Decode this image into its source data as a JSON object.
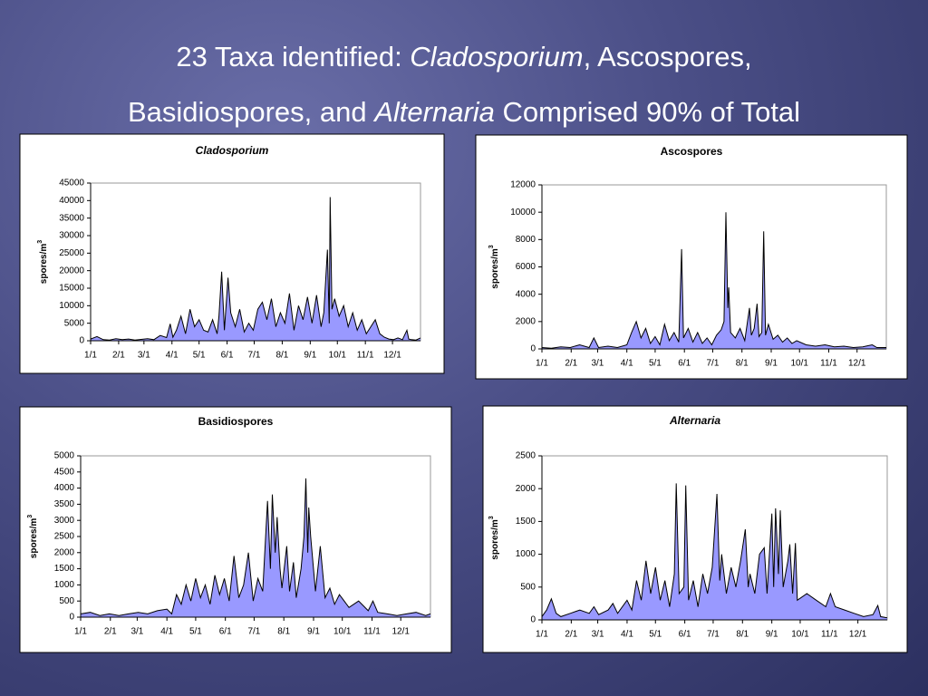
{
  "heading": [
    "23 Taxa identified: ",
    "Cladosporium",
    ", Ascospores,",
    "Basidiospores, and ",
    "Alternaria",
    " Comprised 90% of Total"
  ],
  "chart_data": [
    {
      "type": "area",
      "title": "Cladosporium",
      "title_italic": true,
      "ylabel": "spores/m",
      "ylabel_exponent": "3",
      "color": "#9999ff",
      "line_color": "#000000",
      "x": [
        0,
        7,
        14,
        21,
        28,
        35,
        42,
        49,
        56,
        63,
        70,
        77,
        84,
        88,
        91,
        95,
        100,
        105,
        110,
        115,
        120,
        125,
        130,
        135,
        140,
        142,
        145,
        148,
        152,
        155,
        160,
        165,
        170,
        175,
        180,
        185,
        190,
        195,
        200,
        205,
        210,
        215,
        220,
        225,
        230,
        235,
        240,
        245,
        250,
        255,
        258,
        262,
        264,
        265,
        267,
        270,
        275,
        280,
        285,
        290,
        295,
        300,
        305,
        310,
        315,
        320,
        325,
        330,
        335,
        340,
        345,
        350,
        352,
        355,
        360,
        365
      ],
      "values": [
        500,
        1200,
        300,
        200,
        600,
        300,
        500,
        200,
        400,
        600,
        300,
        1500,
        900,
        4800,
        1000,
        3000,
        7000,
        2000,
        9000,
        4000,
        6000,
        3000,
        2500,
        6000,
        2000,
        7000,
        19700,
        3000,
        18000,
        8000,
        4000,
        9000,
        2500,
        5000,
        3000,
        9000,
        11000,
        6000,
        12000,
        4000,
        8000,
        5000,
        13500,
        3000,
        10000,
        6000,
        12500,
        5000,
        13000,
        4000,
        8000,
        26000,
        5000,
        41000,
        9000,
        12000,
        7000,
        10000,
        4000,
        8000,
        3000,
        6000,
        2000,
        4000,
        6000,
        2000,
        1000,
        500,
        300,
        800,
        300,
        3000,
        500,
        300,
        200,
        800
      ],
      "xlim": [
        0,
        365
      ],
      "ylim": [
        0,
        45000
      ],
      "yticks": [
        0,
        5000,
        10000,
        15000,
        20000,
        25000,
        30000,
        35000,
        40000,
        45000
      ],
      "xticks": [
        {
          "value": 0,
          "label": "1/1"
        },
        {
          "value": 31,
          "label": "2/1"
        },
        {
          "value": 59,
          "label": "3/1"
        },
        {
          "value": 90,
          "label": "4/1"
        },
        {
          "value": 120,
          "label": "5/1"
        },
        {
          "value": 151,
          "label": "6/1"
        },
        {
          "value": 181,
          "label": "7/1"
        },
        {
          "value": 212,
          "label": "8/1"
        },
        {
          "value": 243,
          "label": "9/1"
        },
        {
          "value": 273,
          "label": "10/1"
        },
        {
          "value": 304,
          "label": "11/1"
        },
        {
          "value": 334,
          "label": "12/1"
        }
      ]
    },
    {
      "type": "area",
      "title": "Ascospores",
      "title_italic": false,
      "ylabel": "spores/m",
      "ylabel_exponent": "3",
      "color": "#9999ff",
      "line_color": "#000000",
      "x": [
        0,
        10,
        20,
        30,
        40,
        50,
        55,
        60,
        70,
        80,
        90,
        95,
        100,
        105,
        110,
        115,
        120,
        125,
        130,
        135,
        140,
        145,
        148,
        150,
        155,
        160,
        165,
        170,
        175,
        180,
        185,
        190,
        193,
        195,
        197,
        198,
        200,
        205,
        210,
        215,
        220,
        222,
        225,
        228,
        230,
        233,
        235,
        237,
        240,
        245,
        250,
        255,
        260,
        265,
        270,
        280,
        290,
        300,
        310,
        320,
        330,
        340,
        350,
        355,
        365
      ],
      "values": [
        100,
        50,
        150,
        100,
        300,
        100,
        800,
        100,
        200,
        100,
        300,
        1200,
        2000,
        800,
        1500,
        400,
        900,
        300,
        1800,
        600,
        1200,
        500,
        7300,
        800,
        1500,
        500,
        1200,
        400,
        800,
        300,
        1000,
        1400,
        2000,
        10000,
        3000,
        4500,
        1200,
        800,
        1500,
        600,
        3000,
        1000,
        1500,
        3300,
        900,
        1200,
        8600,
        1000,
        1800,
        700,
        1000,
        500,
        800,
        400,
        600,
        300,
        200,
        300,
        150,
        200,
        100,
        150,
        300,
        100,
        100
      ],
      "xlim": [
        0,
        365
      ],
      "ylim": [
        0,
        12000
      ],
      "yticks": [
        0,
        2000,
        4000,
        6000,
        8000,
        10000,
        12000
      ],
      "xticks": [
        {
          "value": 0,
          "label": "1/1"
        },
        {
          "value": 31,
          "label": "2/1"
        },
        {
          "value": 59,
          "label": "3/1"
        },
        {
          "value": 90,
          "label": "4/1"
        },
        {
          "value": 120,
          "label": "5/1"
        },
        {
          "value": 151,
          "label": "6/1"
        },
        {
          "value": 181,
          "label": "7/1"
        },
        {
          "value": 212,
          "label": "8/1"
        },
        {
          "value": 243,
          "label": "9/1"
        },
        {
          "value": 273,
          "label": "10/1"
        },
        {
          "value": 304,
          "label": "11/1"
        },
        {
          "value": 334,
          "label": "12/1"
        }
      ]
    },
    {
      "type": "area",
      "title": "Basidiospores",
      "title_italic": false,
      "ylabel": "spores/m",
      "ylabel_exponent": "3",
      "color": "#9999ff",
      "line_color": "#000000",
      "x": [
        0,
        10,
        20,
        30,
        40,
        50,
        60,
        70,
        80,
        90,
        95,
        100,
        105,
        110,
        115,
        120,
        125,
        130,
        135,
        140,
        145,
        150,
        155,
        160,
        165,
        170,
        175,
        180,
        185,
        190,
        195,
        198,
        200,
        203,
        205,
        208,
        210,
        215,
        218,
        222,
        225,
        230,
        233,
        235,
        237,
        238,
        240,
        245,
        250,
        255,
        260,
        265,
        270,
        280,
        290,
        300,
        305,
        310,
        320,
        330,
        340,
        350,
        360,
        365
      ],
      "values": [
        100,
        150,
        50,
        100,
        50,
        100,
        150,
        100,
        200,
        250,
        100,
        700,
        400,
        1000,
        500,
        1200,
        600,
        1000,
        400,
        1300,
        700,
        1200,
        500,
        1900,
        600,
        1000,
        2000,
        500,
        1200,
        800,
        3600,
        1500,
        3800,
        2000,
        3100,
        1500,
        900,
        2200,
        800,
        1700,
        600,
        1500,
        2500,
        4300,
        2000,
        3400,
        2500,
        800,
        2200,
        600,
        900,
        400,
        700,
        300,
        500,
        200,
        500,
        150,
        100,
        50,
        100,
        150,
        50,
        100
      ],
      "xlim": [
        0,
        365
      ],
      "ylim": [
        0,
        5000
      ],
      "yticks": [
        0,
        500,
        1000,
        1500,
        2000,
        2500,
        3000,
        3500,
        4000,
        4500,
        5000
      ],
      "xticks": [
        {
          "value": 0,
          "label": "1/1"
        },
        {
          "value": 31,
          "label": "2/1"
        },
        {
          "value": 59,
          "label": "3/1"
        },
        {
          "value": 90,
          "label": "4/1"
        },
        {
          "value": 120,
          "label": "5/1"
        },
        {
          "value": 151,
          "label": "6/1"
        },
        {
          "value": 181,
          "label": "7/1"
        },
        {
          "value": 212,
          "label": "8/1"
        },
        {
          "value": 243,
          "label": "9/1"
        },
        {
          "value": 273,
          "label": "10/1"
        },
        {
          "value": 304,
          "label": "11/1"
        },
        {
          "value": 334,
          "label": "12/1"
        }
      ]
    },
    {
      "type": "area",
      "title": "Alternaria",
      "title_italic": true,
      "ylabel": "spores/m",
      "ylabel_exponent": "3",
      "color": "#9999ff",
      "line_color": "#000000",
      "x": [
        0,
        5,
        10,
        15,
        20,
        30,
        40,
        50,
        55,
        60,
        70,
        75,
        80,
        90,
        95,
        100,
        105,
        110,
        115,
        120,
        125,
        130,
        135,
        140,
        142,
        145,
        150,
        152,
        155,
        160,
        165,
        170,
        175,
        180,
        185,
        188,
        190,
        195,
        200,
        205,
        210,
        215,
        218,
        220,
        225,
        230,
        235,
        238,
        243,
        245,
        247,
        250,
        252,
        255,
        260,
        262,
        265,
        268,
        270,
        280,
        290,
        300,
        305,
        310,
        320,
        330,
        340,
        350,
        355,
        358,
        365
      ],
      "values": [
        50,
        150,
        320,
        100,
        50,
        100,
        150,
        100,
        200,
        80,
        150,
        250,
        100,
        300,
        150,
        600,
        300,
        900,
        400,
        800,
        300,
        600,
        200,
        700,
        2080,
        400,
        500,
        2050,
        300,
        600,
        200,
        700,
        400,
        800,
        1920,
        600,
        1000,
        400,
        800,
        500,
        900,
        1380,
        500,
        700,
        400,
        1000,
        1100,
        400,
        1620,
        500,
        1700,
        700,
        1670,
        500,
        900,
        1150,
        400,
        1170,
        300,
        400,
        300,
        200,
        400,
        200,
        150,
        100,
        50,
        80,
        220,
        50,
        30
      ],
      "xlim": [
        0,
        365
      ],
      "ylim": [
        0,
        2500
      ],
      "yticks": [
        0,
        500,
        1000,
        1500,
        2000,
        2500
      ],
      "xticks": [
        {
          "value": 0,
          "label": "1/1"
        },
        {
          "value": 31,
          "label": "2/1"
        },
        {
          "value": 59,
          "label": "3/1"
        },
        {
          "value": 90,
          "label": "4/1"
        },
        {
          "value": 120,
          "label": "5/1"
        },
        {
          "value": 151,
          "label": "6/1"
        },
        {
          "value": 181,
          "label": "7/1"
        },
        {
          "value": 212,
          "label": "8/1"
        },
        {
          "value": 243,
          "label": "9/1"
        },
        {
          "value": 273,
          "label": "10/1"
        },
        {
          "value": 304,
          "label": "11/1"
        },
        {
          "value": 334,
          "label": "12/1"
        }
      ]
    }
  ]
}
